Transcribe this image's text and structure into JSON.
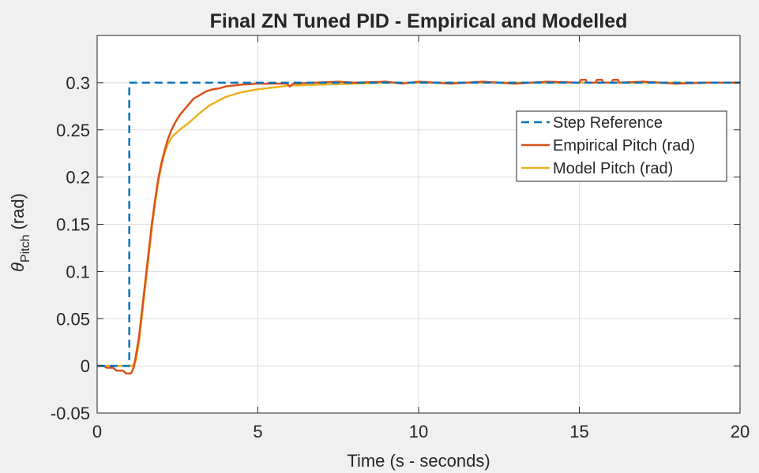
{
  "chart_data": {
    "type": "line",
    "title": "Final ZN Tuned PID - Empirical and Modelled",
    "xlabel": "Time (s - seconds)",
    "ylabel_symbol": "θ",
    "ylabel_subscript": "Pitch",
    "ylabel_unit": "(rad)",
    "xlim": [
      0,
      20
    ],
    "ylim": [
      -0.05,
      0.35
    ],
    "xticks": [
      0,
      5,
      10,
      15,
      20
    ],
    "xtick_labels": [
      "0",
      "5",
      "10",
      "15",
      "20"
    ],
    "yticks": [
      -0.05,
      0,
      0.05,
      0.1,
      0.15,
      0.2,
      0.25,
      0.3
    ],
    "ytick_labels": [
      "-0.05",
      "0",
      "0.05",
      "0.1",
      "0.15",
      "0.2",
      "0.25",
      "0.3"
    ],
    "grid": true,
    "legend_position": "upper-right",
    "series": [
      {
        "name": "Step Reference",
        "color": "#0072BD",
        "style": "dashed",
        "x": [
          0,
          1,
          1,
          20
        ],
        "y": [
          0,
          0,
          0.3,
          0.3
        ]
      },
      {
        "name": "Empirical Pitch (rad)",
        "color": "#D95319",
        "style": "solid",
        "x": [
          0,
          0.2,
          0.3,
          0.5,
          0.6,
          0.8,
          0.9,
          1.05,
          1.1,
          1.15,
          1.2,
          1.25,
          1.3,
          1.4,
          1.5,
          1.6,
          1.7,
          1.8,
          1.9,
          2.0,
          2.1,
          2.2,
          2.3,
          2.4,
          2.5,
          2.6,
          2.7,
          2.8,
          2.9,
          3.0,
          3.2,
          3.4,
          3.6,
          3.8,
          4.0,
          4.5,
          5.0,
          5.9,
          6.0,
          6.1,
          7.5,
          8.0,
          9.0,
          9.5,
          10.0,
          11.0,
          12.0,
          13.0,
          14.0,
          15.0,
          15.05,
          15.2,
          15.25,
          15.5,
          15.55,
          15.7,
          15.75,
          16.0,
          16.05,
          16.2,
          16.25,
          17.0,
          18.0,
          19.0,
          20.0
        ],
        "y": [
          0,
          0,
          -0.002,
          -0.002,
          -0.005,
          -0.005,
          -0.008,
          -0.008,
          -0.005,
          0.0,
          0.01,
          0.02,
          0.03,
          0.06,
          0.09,
          0.12,
          0.15,
          0.175,
          0.198,
          0.215,
          0.228,
          0.24,
          0.249,
          0.256,
          0.262,
          0.267,
          0.271,
          0.275,
          0.279,
          0.283,
          0.287,
          0.291,
          0.293,
          0.294,
          0.296,
          0.298,
          0.299,
          0.299,
          0.296,
          0.299,
          0.301,
          0.3,
          0.301,
          0.299,
          0.301,
          0.299,
          0.301,
          0.299,
          0.301,
          0.3,
          0.303,
          0.303,
          0.3,
          0.3,
          0.303,
          0.303,
          0.3,
          0.3,
          0.303,
          0.303,
          0.3,
          0.301,
          0.299,
          0.3,
          0.3
        ]
      },
      {
        "name": "Model Pitch (rad)",
        "color": "#EDB120",
        "style": "solid",
        "x": [
          0,
          1.1,
          1.2,
          1.3,
          1.4,
          1.5,
          1.6,
          1.7,
          1.8,
          1.9,
          2.0,
          2.1,
          2.2,
          2.3,
          2.4,
          2.5,
          2.6,
          2.8,
          3.0,
          3.2,
          3.5,
          4.0,
          4.5,
          5.0,
          5.5,
          6.0,
          7.0,
          8.0,
          9.0,
          10.0,
          12.0,
          15.0,
          20.0
        ],
        "y": [
          0,
          0,
          0.005,
          0.025,
          0.055,
          0.085,
          0.115,
          0.145,
          0.172,
          0.195,
          0.212,
          0.226,
          0.235,
          0.241,
          0.245,
          0.248,
          0.251,
          0.256,
          0.262,
          0.268,
          0.276,
          0.285,
          0.29,
          0.293,
          0.295,
          0.297,
          0.298,
          0.299,
          0.3,
          0.3,
          0.3,
          0.3,
          0.3
        ]
      }
    ]
  }
}
